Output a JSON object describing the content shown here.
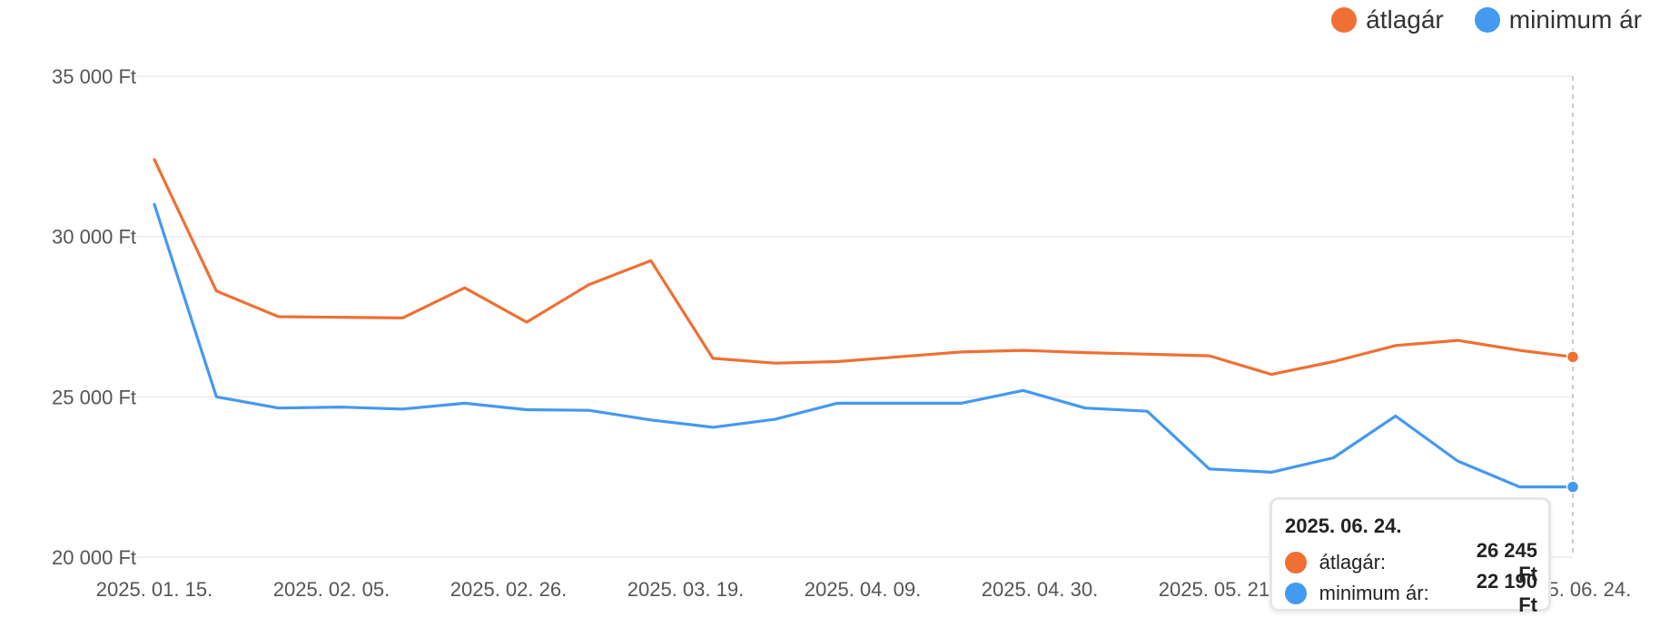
{
  "legend": {
    "items": [
      {
        "label": "átlagár",
        "color": "#ee7033"
      },
      {
        "label": "minimum ár",
        "color": "#4499f0"
      }
    ]
  },
  "chart_data": {
    "type": "line",
    "title": "",
    "xlabel": "",
    "ylabel": "",
    "ylim": [
      20000,
      35000
    ],
    "y_ticks": [
      "20 000 Ft",
      "25 000 Ft",
      "30 000 Ft",
      "35 000 Ft"
    ],
    "y_tick_values": [
      20000,
      25000,
      30000,
      35000
    ],
    "x_ticks": [
      "2025. 01. 15.",
      "2025. 02. 05.",
      "2025. 02. 26.",
      "2025. 03. 19.",
      "2025. 04. 09.",
      "2025. 04. 30.",
      "2025. 05. 21.",
      "2025. 06. 24."
    ],
    "x": [
      "2025-01-15",
      "2025-01-22",
      "2025-01-29",
      "2025-02-05",
      "2025-02-12",
      "2025-02-19",
      "2025-02-26",
      "2025-03-05",
      "2025-03-12",
      "2025-03-19",
      "2025-03-26",
      "2025-04-02",
      "2025-04-09",
      "2025-04-16",
      "2025-04-23",
      "2025-04-30",
      "2025-05-07",
      "2025-05-14",
      "2025-05-21",
      "2025-05-28",
      "2025-06-04",
      "2025-06-11",
      "2025-06-18",
      "2025-06-24"
    ],
    "series": [
      {
        "name": "átlagár",
        "color": "#ee7033",
        "values": [
          32400,
          28300,
          27500,
          27480,
          27460,
          28400,
          27330,
          28500,
          29250,
          26200,
          26050,
          26100,
          26250,
          26400,
          26450,
          26380,
          26330,
          26280,
          25700,
          26100,
          26600,
          26760,
          26450,
          26245
        ]
      },
      {
        "name": "minimum ár",
        "color": "#4499f0",
        "values": [
          31000,
          25000,
          24650,
          24680,
          24620,
          24800,
          24600,
          24580,
          24280,
          24050,
          24300,
          24800,
          24800,
          24800,
          25200,
          24650,
          24550,
          22750,
          22650,
          23100,
          24400,
          23000,
          22190,
          22190
        ]
      }
    ],
    "grid": true,
    "legend_position": "top-right"
  },
  "tooltip": {
    "date": "2025. 06. 24.",
    "rows": [
      {
        "label": "átlagár:",
        "value": "26 245 Ft",
        "color": "#ee7033"
      },
      {
        "label": "minimum ár:",
        "value": "22 190 Ft",
        "color": "#4499f0"
      }
    ]
  }
}
